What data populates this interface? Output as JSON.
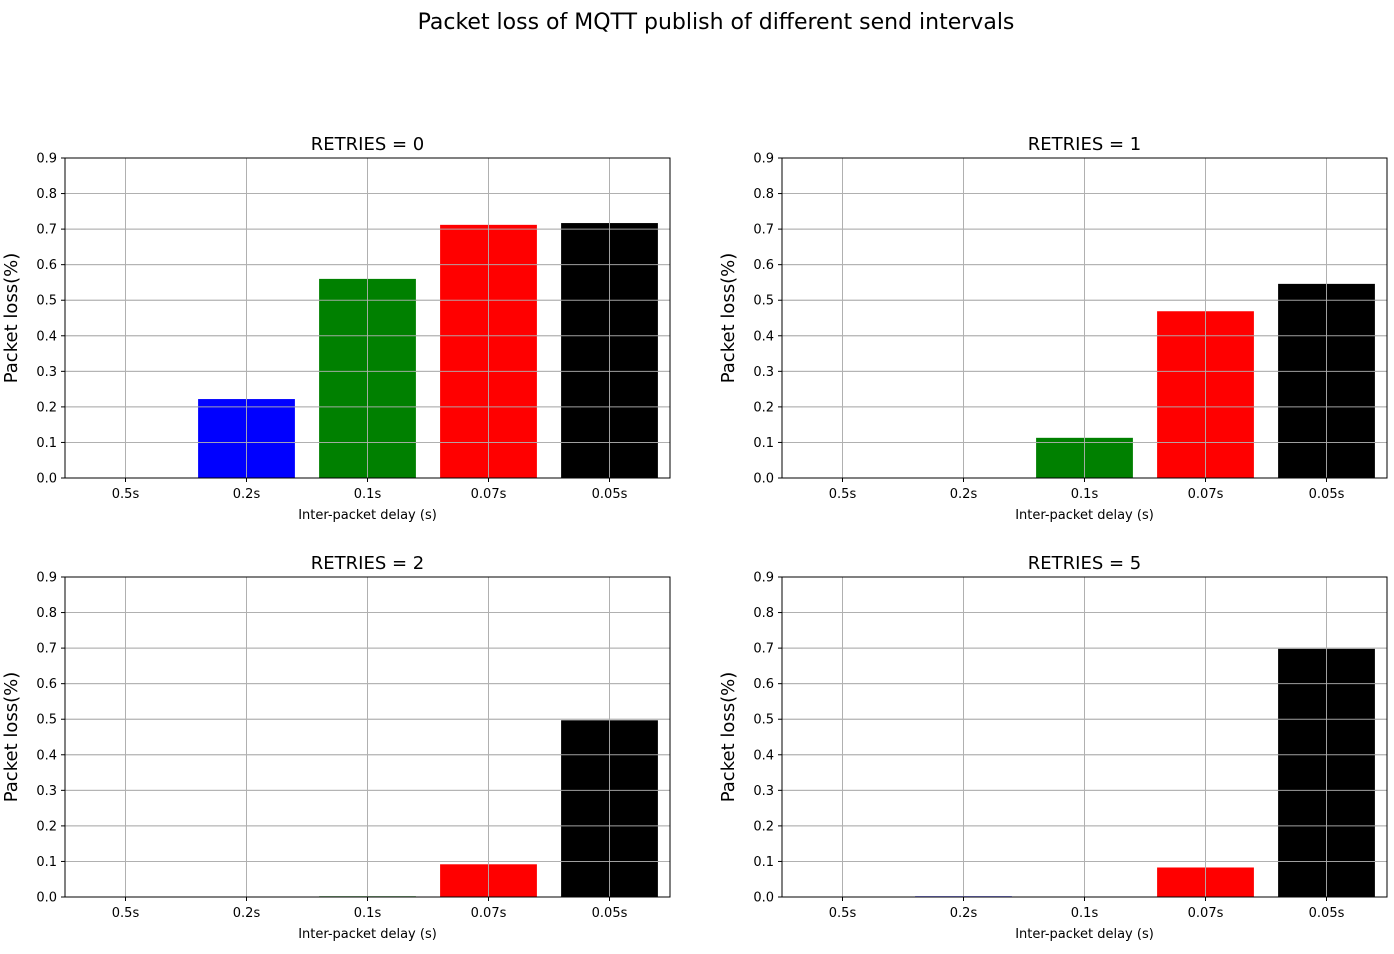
{
  "figure": {
    "suptitle": "Packet loss of MQTT publish of different send intervals"
  },
  "chart_data": [
    {
      "type": "bar",
      "title": "RETRIES = 0",
      "xlabel": "Inter-packet delay (s)",
      "ylabel": "Packet loss(%)",
      "categories": [
        "0.5s",
        "0.2s",
        "0.1s",
        "0.07s",
        "0.05s"
      ],
      "values": [
        0,
        0.222,
        0.56,
        0.712,
        0.717
      ],
      "colors": [
        "#0000ff",
        "#0000ff",
        "#008000",
        "#ff0000",
        "#000000"
      ],
      "ylim": [
        0,
        0.9
      ],
      "yticks": [
        "0.0",
        "0.1",
        "0.2",
        "0.3",
        "0.4",
        "0.5",
        "0.6",
        "0.7",
        "0.8",
        "0.9"
      ],
      "grid": true
    },
    {
      "type": "bar",
      "title": "RETRIES = 1",
      "xlabel": "Inter-packet delay (s)",
      "ylabel": "Packet loss(%)",
      "categories": [
        "0.5s",
        "0.2s",
        "0.1s",
        "0.07s",
        "0.05s"
      ],
      "values": [
        0,
        0,
        0.113,
        0.469,
        0.546
      ],
      "colors": [
        "#0000ff",
        "#0000ff",
        "#008000",
        "#ff0000",
        "#000000"
      ],
      "ylim": [
        0,
        0.9
      ],
      "yticks": [
        "0.0",
        "0.1",
        "0.2",
        "0.3",
        "0.4",
        "0.5",
        "0.6",
        "0.7",
        "0.8",
        "0.9"
      ],
      "grid": true
    },
    {
      "type": "bar",
      "title": "RETRIES = 2",
      "xlabel": "Inter-packet delay (s)",
      "ylabel": "Packet loss(%)",
      "categories": [
        "0.5s",
        "0.2s",
        "0.1s",
        "0.07s",
        "0.05s"
      ],
      "values": [
        0,
        0,
        0.002,
        0.092,
        0.497
      ],
      "colors": [
        "#0000ff",
        "#0000ff",
        "#008000",
        "#ff0000",
        "#000000"
      ],
      "ylim": [
        0,
        0.9
      ],
      "yticks": [
        "0.0",
        "0.1",
        "0.2",
        "0.3",
        "0.4",
        "0.5",
        "0.6",
        "0.7",
        "0.8",
        "0.9"
      ],
      "grid": true
    },
    {
      "type": "bar",
      "title": "RETRIES = 5",
      "xlabel": "Inter-packet delay (s)",
      "ylabel": "Packet loss(%)",
      "categories": [
        "0.5s",
        "0.2s",
        "0.1s",
        "0.07s",
        "0.05s"
      ],
      "values": [
        0,
        0.002,
        0,
        0.083,
        0.698
      ],
      "colors": [
        "#0000ff",
        "#0000ff",
        "#008000",
        "#ff0000",
        "#000000"
      ],
      "ylim": [
        0,
        0.9
      ],
      "yticks": [
        "0.0",
        "0.1",
        "0.2",
        "0.3",
        "0.4",
        "0.5",
        "0.6",
        "0.7",
        "0.8",
        "0.9"
      ],
      "grid": true
    }
  ]
}
